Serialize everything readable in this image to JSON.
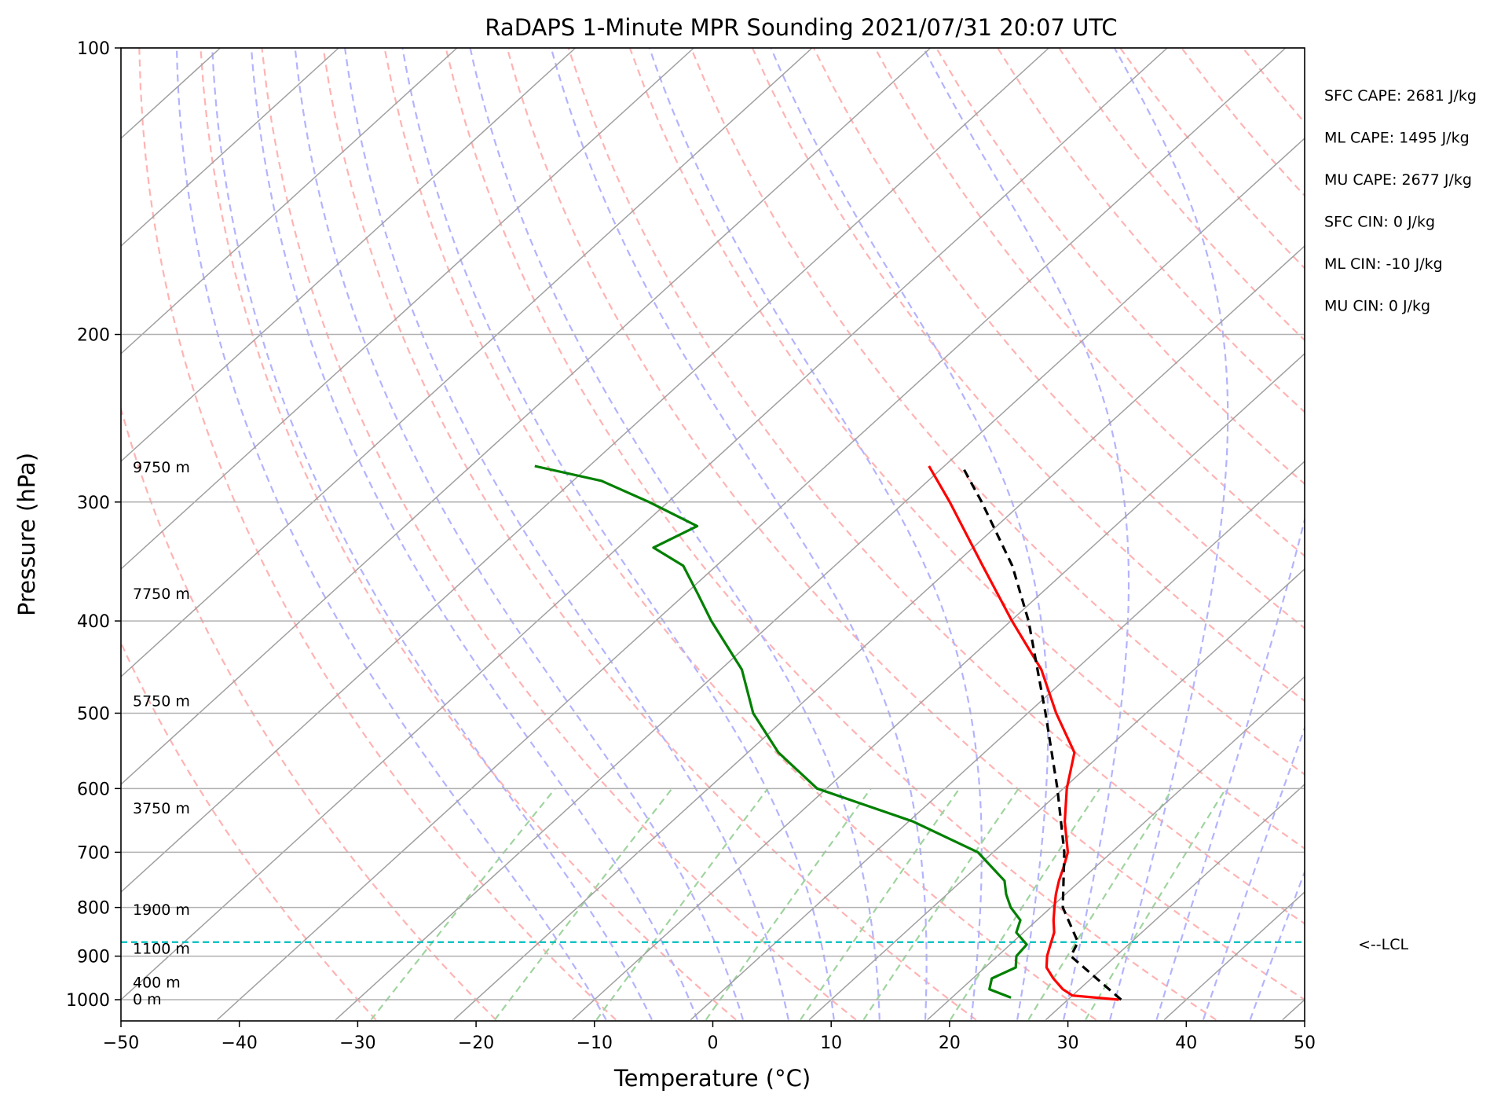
{
  "chart_data": {
    "type": "line",
    "subtype": "skew-t log-p sounding",
    "title": "RaDAPS 1-Minute MPR Sounding 2021/07/31 20:07 UTC",
    "xlabel": "Temperature (°C)",
    "ylabel": "Pressure (hPa)",
    "xlim": [
      -50,
      50
    ],
    "ylim": [
      1050,
      100
    ],
    "y_scale": "log",
    "grid": true,
    "x_ticks": [
      -50,
      -40,
      -30,
      -20,
      -10,
      0,
      10,
      20,
      30,
      40,
      50
    ],
    "x_tick_labels": [
      "−50",
      "−40",
      "−30",
      "−20",
      "−10",
      "0",
      "10",
      "20",
      "30",
      "40",
      "50"
    ],
    "y_ticks": [
      100,
      200,
      300,
      400,
      500,
      600,
      700,
      800,
      900,
      1000
    ],
    "y_tick_labels": [
      "100",
      "200",
      "300",
      "400",
      "500",
      "600",
      "700",
      "800",
      "900",
      "1000"
    ],
    "series": [
      {
        "role": "temperature",
        "color": "#ff0000",
        "style": "solid",
        "points": [
          [
            1000,
            34.3
          ],
          [
            990,
            30.0
          ],
          [
            975,
            28.6
          ],
          [
            950,
            26.8
          ],
          [
            925,
            25.2
          ],
          [
            900,
            24.2
          ],
          [
            875,
            23.4
          ],
          [
            850,
            22.6
          ],
          [
            825,
            21.4
          ],
          [
            800,
            20.3
          ],
          [
            775,
            19.2
          ],
          [
            750,
            18.2
          ],
          [
            725,
            17.3
          ],
          [
            700,
            16.3
          ],
          [
            650,
            13.2
          ],
          [
            600,
            10.3
          ],
          [
            550,
            7.6
          ],
          [
            500,
            2.4
          ],
          [
            450,
            -2.9
          ],
          [
            400,
            -9.9
          ],
          [
            350,
            -17.5
          ],
          [
            300,
            -26.2
          ],
          [
            275,
            -31.3
          ]
        ]
      },
      {
        "role": "dewpoint",
        "color": "#008000",
        "style": "solid",
        "points": [
          [
            995,
            25.0
          ],
          [
            975,
            22.4
          ],
          [
            950,
            21.6
          ],
          [
            925,
            22.6
          ],
          [
            900,
            21.6
          ],
          [
            875,
            21.4
          ],
          [
            850,
            19.4
          ],
          [
            825,
            18.6
          ],
          [
            800,
            16.6
          ],
          [
            775,
            15.0
          ],
          [
            750,
            13.6
          ],
          [
            700,
            8.7
          ],
          [
            650,
            0.4
          ],
          [
            600,
            -10.8
          ],
          [
            550,
            -17.4
          ],
          [
            500,
            -23.2
          ],
          [
            450,
            -28.2
          ],
          [
            400,
            -35.3
          ],
          [
            375,
            -38.9
          ],
          [
            350,
            -42.8
          ],
          [
            335,
            -47.0
          ],
          [
            318,
            -45.3
          ],
          [
            300,
            -51.6
          ],
          [
            285,
            -57.6
          ],
          [
            275,
            -64.6
          ]
        ]
      },
      {
        "role": "parcel path",
        "color": "#000000",
        "style": "dashed",
        "points": [
          [
            1000,
            34.5
          ],
          [
            900,
            26.2
          ],
          [
            870,
            25.5
          ],
          [
            800,
            21.0
          ],
          [
            700,
            16.0
          ],
          [
            600,
            9.5
          ],
          [
            500,
            1.5
          ],
          [
            400,
            -8.5
          ],
          [
            350,
            -15.0
          ],
          [
            300,
            -23.5
          ],
          [
            275,
            -28.5
          ]
        ]
      }
    ],
    "annotations": {
      "lcl_pressure": 870,
      "lcl_label": "<--LCL",
      "height_labels": [
        {
          "text": "0 m",
          "pressure": 1000
        },
        {
          "text": "400 m",
          "pressure": 960
        },
        {
          "text": "1100 m",
          "pressure": 885
        },
        {
          "text": "1900 m",
          "pressure": 805
        },
        {
          "text": "3750 m",
          "pressure": 630
        },
        {
          "text": "5750 m",
          "pressure": 486
        },
        {
          "text": "7750 m",
          "pressure": 375
        },
        {
          "text": "9750 m",
          "pressure": 276
        }
      ],
      "indices": [
        "SFC CAPE: 2681 J/kg",
        "ML CAPE: 1495 J/kg",
        "MU CAPE: 2677 J/kg",
        "SFC CIN: 0 J/kg",
        "ML CIN: -10 J/kg",
        "MU CIN: 0 J/kg"
      ]
    },
    "reference_lines": {
      "isotherms_color": "#a0a0a0",
      "dry_adiabats_color": "#ffb3b3",
      "moist_adiabats_color": "#b3b3ff",
      "mixing_ratio_color": "#9fd49f",
      "lcl_line_color": "#00bfbf"
    }
  }
}
